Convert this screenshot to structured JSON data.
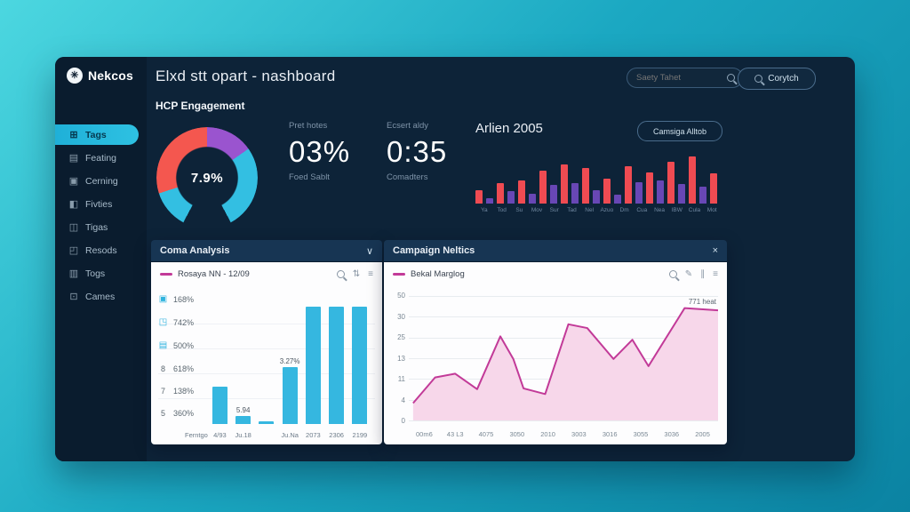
{
  "colors": {
    "bg_start": "#4cd7e0",
    "bg_end": "#0b83a2",
    "panel": "#0d2338",
    "sidebar": "#0a1c2e",
    "card_header": "#173553",
    "accent_cyan": "#2ec1e2",
    "bar_red": "#ef4b52",
    "bar_purple": "#6847b5",
    "donut_red": "#f4574f",
    "donut_purple": "#9a54cf",
    "donut_cyan": "#33bfe2",
    "line_magenta": "#c23a98",
    "line_fill": "#f7d7ea",
    "cyan_bar": "#35b7e0"
  },
  "header": {
    "logo_text": "Nekcos",
    "logo_glyph": "✳",
    "title": "Elxd stt opart - nashboard",
    "search_placeholder": "Saety Tahet",
    "search_button_label": "Corytch"
  },
  "sidebar": {
    "items": [
      {
        "label": "Tags",
        "icon": "grid-icon",
        "glyph": "⊞",
        "active": true
      },
      {
        "label": "Feating",
        "icon": "panel-icon",
        "glyph": "▤",
        "active": false
      },
      {
        "label": "Cerning",
        "icon": "square-icon",
        "glyph": "▣",
        "active": false
      },
      {
        "label": "Fivties",
        "icon": "person-icon",
        "glyph": "◧",
        "active": false
      },
      {
        "label": "Tigas",
        "icon": "layers-icon",
        "glyph": "◫",
        "active": false
      },
      {
        "label": "Resods",
        "icon": "lock-icon",
        "glyph": "◰",
        "active": false
      },
      {
        "label": "Togs",
        "icon": "file-icon",
        "glyph": "▥",
        "active": false
      },
      {
        "label": "Cames",
        "icon": "gear-icon",
        "glyph": "⊡",
        "active": false
      }
    ]
  },
  "overview": {
    "section_title": "HCP Engagement",
    "metrics": [
      {
        "label": "Pret hotes",
        "value": "03%",
        "sub": "Foed Sablt"
      },
      {
        "label": "Ecsert aldy",
        "value": "0:35",
        "sub": "Comadters"
      }
    ]
  },
  "panels": {
    "left_collapse_glyph": "∨",
    "right_close_glyph": "×"
  },
  "icons": {
    "pencil": "✎",
    "menu": "≡",
    "sort": "⇅",
    "pause": "∥"
  },
  "chart_data": [
    {
      "id": "hcp-gauge",
      "type": "pie",
      "center_label": "7.9%",
      "legend_position": "none",
      "segments": [
        {
          "name": "purple",
          "start": 0,
          "end": 55,
          "color": "#9a54cf"
        },
        {
          "name": "cyan",
          "start": 55,
          "end": 152,
          "color": "#33bfe2"
        },
        {
          "name": "gap",
          "start": 152,
          "end": 208,
          "color": "transparent"
        },
        {
          "name": "cyan-left",
          "start": 208,
          "end": 252,
          "color": "#33bfe2"
        },
        {
          "name": "red",
          "start": 252,
          "end": 360,
          "color": "#f4574f"
        }
      ]
    },
    {
      "id": "arlien-2005",
      "type": "bar",
      "title": "Arlien 2005",
      "button_label": "Camsiga Alltob",
      "ylim": [
        0,
        60
      ],
      "grid": false,
      "categories": [
        "Ya",
        "Tod",
        "Su",
        "Mov",
        "Sur",
        "Tad",
        "Nel",
        "Azuo",
        "Dm",
        "Cua",
        "Nea",
        "IBW",
        "Cula",
        "Mot"
      ],
      "bars": [
        {
          "color": "red",
          "value": 15
        },
        {
          "color": "purple",
          "value": 6
        },
        {
          "color": "red",
          "value": 23
        },
        {
          "color": "purple",
          "value": 14
        },
        {
          "color": "red",
          "value": 26
        },
        {
          "color": "purple",
          "value": 11
        },
        {
          "color": "red",
          "value": 37
        },
        {
          "color": "purple",
          "value": 21
        },
        {
          "color": "red",
          "value": 44
        },
        {
          "color": "purple",
          "value": 23
        },
        {
          "color": "red",
          "value": 40
        },
        {
          "color": "purple",
          "value": 15
        },
        {
          "color": "red",
          "value": 28
        },
        {
          "color": "purple",
          "value": 10
        },
        {
          "color": "red",
          "value": 42
        },
        {
          "color": "purple",
          "value": 24
        },
        {
          "color": "red",
          "value": 35
        },
        {
          "color": "purple",
          "value": 26
        },
        {
          "color": "red",
          "value": 47
        },
        {
          "color": "purple",
          "value": 22
        },
        {
          "color": "red",
          "value": 53
        },
        {
          "color": "purple",
          "value": 19
        },
        {
          "color": "red",
          "value": 34
        }
      ]
    },
    {
      "id": "coma-analysis",
      "type": "bar",
      "panel_title": "Coma Analysis",
      "legend": "Rosaya NN - 12/09",
      "ylim": [
        0,
        140
      ],
      "grid": true,
      "side_stats": [
        {
          "glyph": "▣",
          "icon": "checkbox-icon",
          "cyan": true,
          "value": "168%"
        },
        {
          "glyph": "◳",
          "icon": "chart-icon",
          "cyan": true,
          "value": "742%"
        },
        {
          "glyph": "▤",
          "icon": "calendar-icon",
          "cyan": true,
          "value": "500%"
        },
        {
          "glyph": "8",
          "icon": "digit-label",
          "cyan": false,
          "value": "618%"
        },
        {
          "glyph": "7",
          "icon": "digit-label",
          "cyan": false,
          "value": "138%"
        },
        {
          "glyph": "5",
          "icon": "digit-label",
          "cyan": false,
          "value": "360%"
        }
      ],
      "categories": [
        "Ferntgoes",
        "4/93",
        "Ju.18",
        "",
        "Ju.Na",
        "2073",
        "2306",
        "2199"
      ],
      "values": [
        null,
        42,
        9,
        3,
        64,
        132,
        132,
        132
      ],
      "bar_labels": [
        null,
        null,
        "5.94",
        null,
        "3.27%",
        null,
        null,
        null
      ]
    },
    {
      "id": "campaign-neltics",
      "type": "area",
      "panel_title": "Campaign Neltics",
      "legend": "Bekal Marglog",
      "annotation": "771 heat",
      "ylim": [
        0,
        33
      ],
      "grid": true,
      "legend_position": "top-left",
      "y_ticks": [
        "50",
        "30",
        "25",
        "13",
        "11",
        "4",
        "0"
      ],
      "x_ticks": [
        "00m6",
        "43 L3",
        "4075",
        "3050",
        "2010",
        "3003",
        "3016",
        "3055",
        "3036",
        "2005"
      ],
      "points": [
        [
          1.4,
          4.6
        ],
        [
          8.5,
          11.4
        ],
        [
          15.0,
          12.4
        ],
        [
          22.1,
          8.3
        ],
        [
          29.6,
          22.3
        ],
        [
          33.8,
          16.3
        ],
        [
          37.1,
          8.5
        ],
        [
          44.1,
          7.0
        ],
        [
          51.6,
          25.5
        ],
        [
          57.7,
          24.5
        ],
        [
          66.2,
          16.3
        ],
        [
          72.3,
          21.4
        ],
        [
          77.5,
          14.4
        ],
        [
          89.2,
          29.8
        ],
        [
          100,
          29.2
        ]
      ]
    }
  ]
}
